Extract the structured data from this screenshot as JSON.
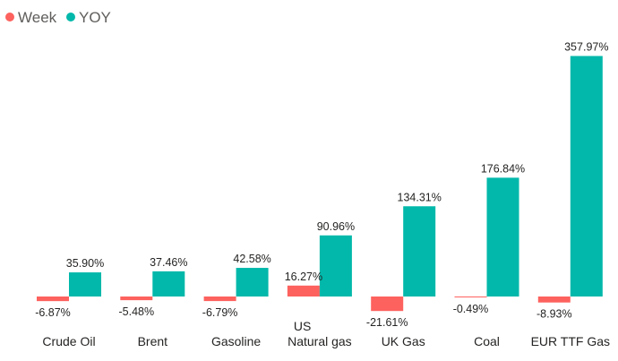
{
  "chart_data": {
    "type": "bar",
    "categories": [
      "Crude Oil",
      "Brent",
      "Gasoline",
      "US\nNatural gas",
      "UK Gas",
      "Coal",
      "EUR TTF Gas"
    ],
    "series": [
      {
        "name": "Week",
        "color": "#fd625e",
        "values": [
          -6.87,
          -5.48,
          -6.79,
          16.27,
          -21.61,
          -0.49,
          -8.93
        ],
        "labels": [
          "-6.87%",
          "-5.48%",
          "-6.79%",
          "16.27%",
          "-21.61%",
          "-0.49%",
          "-8.93%"
        ]
      },
      {
        "name": "YOY",
        "color": "#01b8aa",
        "values": [
          35.9,
          37.46,
          42.58,
          90.96,
          134.31,
          176.84,
          357.97
        ],
        "labels": [
          "35.90%",
          "37.46%",
          "42.58%",
          "90.96%",
          "134.31%",
          "176.84%",
          "357.97%"
        ]
      }
    ],
    "legend_position": "top-left",
    "grid": false,
    "ylim": [
      -30,
      375
    ]
  }
}
